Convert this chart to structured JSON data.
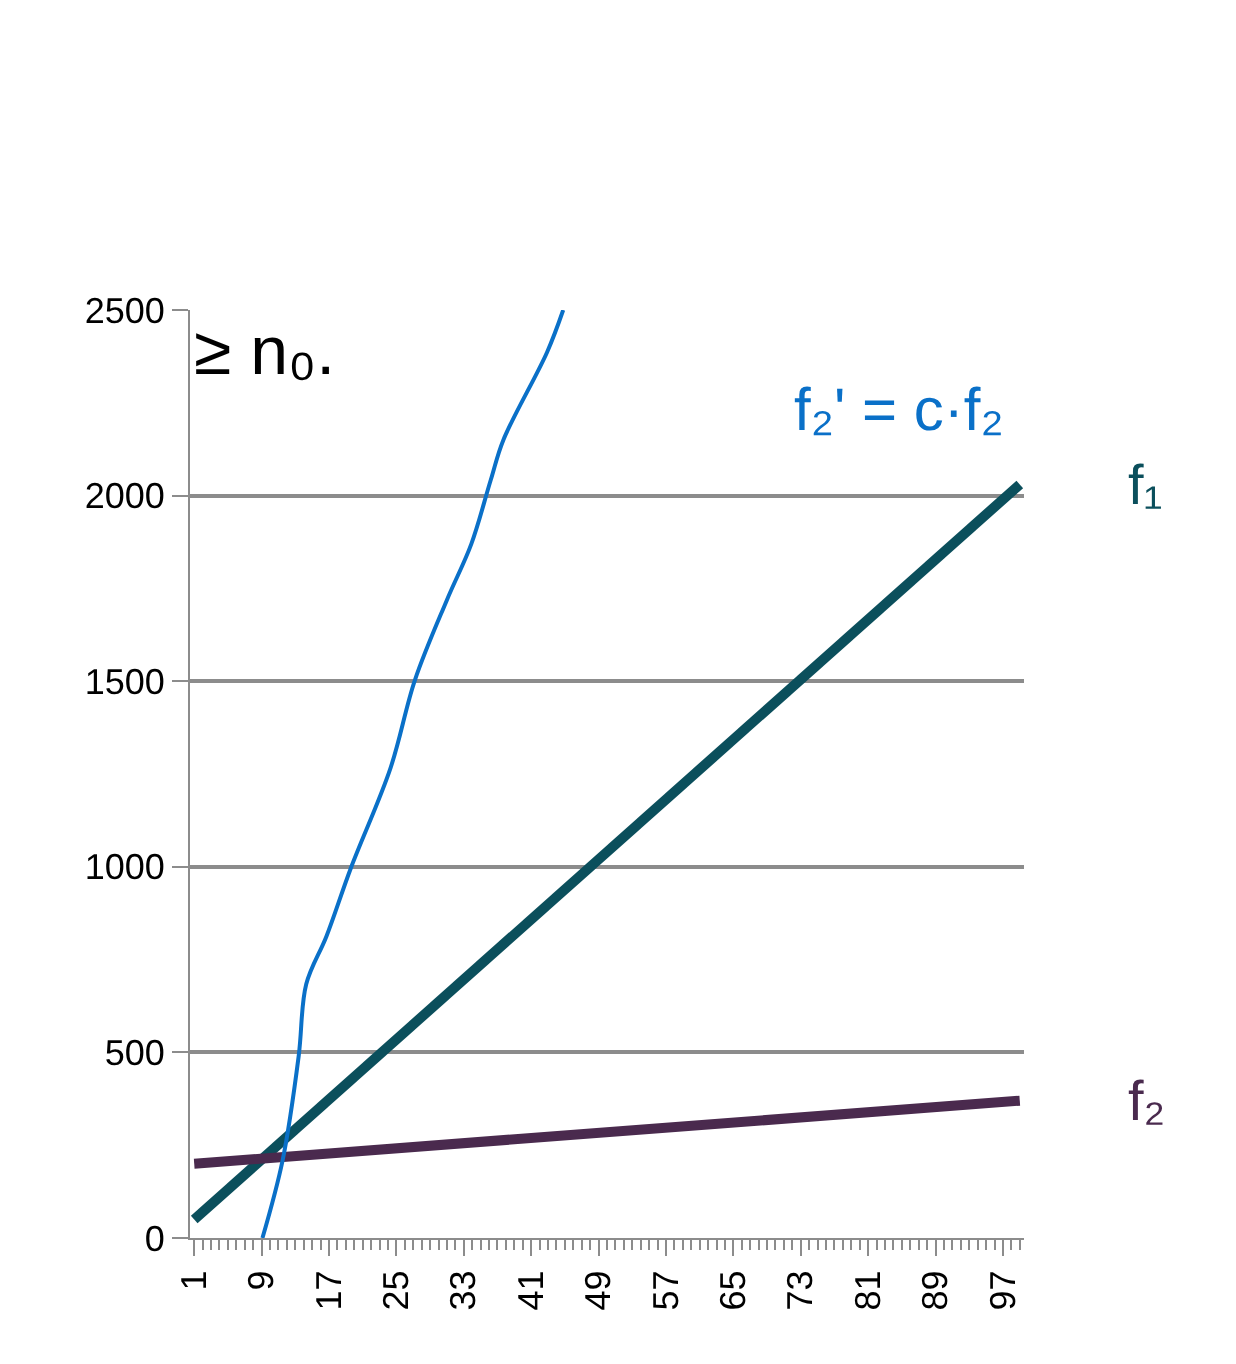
{
  "chart_data": {
    "type": "line",
    "annotations": [
      "≥ n₀.",
      "f₂' = c·f₂"
    ],
    "xlim": [
      0.5,
      99.5
    ],
    "xticks": [
      1,
      9,
      17,
      25,
      33,
      41,
      49,
      57,
      65,
      73,
      81,
      89,
      97
    ],
    "ylim": [
      0,
      2500
    ],
    "yticks": [
      0,
      500,
      1000,
      1500,
      2000,
      2500
    ],
    "grid": "y",
    "legend": false,
    "series": [
      {
        "name": "f₁",
        "color": "#0b4f5c",
        "x": [
          1,
          99
        ],
        "values": [
          50,
          2030
        ]
      },
      {
        "name": "f₂",
        "color": "#4a2a4e",
        "x": [
          1,
          99
        ],
        "values": [
          200,
          370
        ]
      },
      {
        "color": "#0a70c8",
        "x": [
          9.1,
          11.5,
          13.4,
          14.3,
          16.7,
          19.6,
          24.3,
          27.2,
          31,
          33.9,
          36.2,
          37.7,
          42.9,
          44.8
        ],
        "values": [
          0,
          210,
          490,
          684,
          813,
          997,
          1266,
          1503,
          1719,
          1870,
          2042,
          2150,
          2387,
          2500
        ]
      }
    ]
  }
}
